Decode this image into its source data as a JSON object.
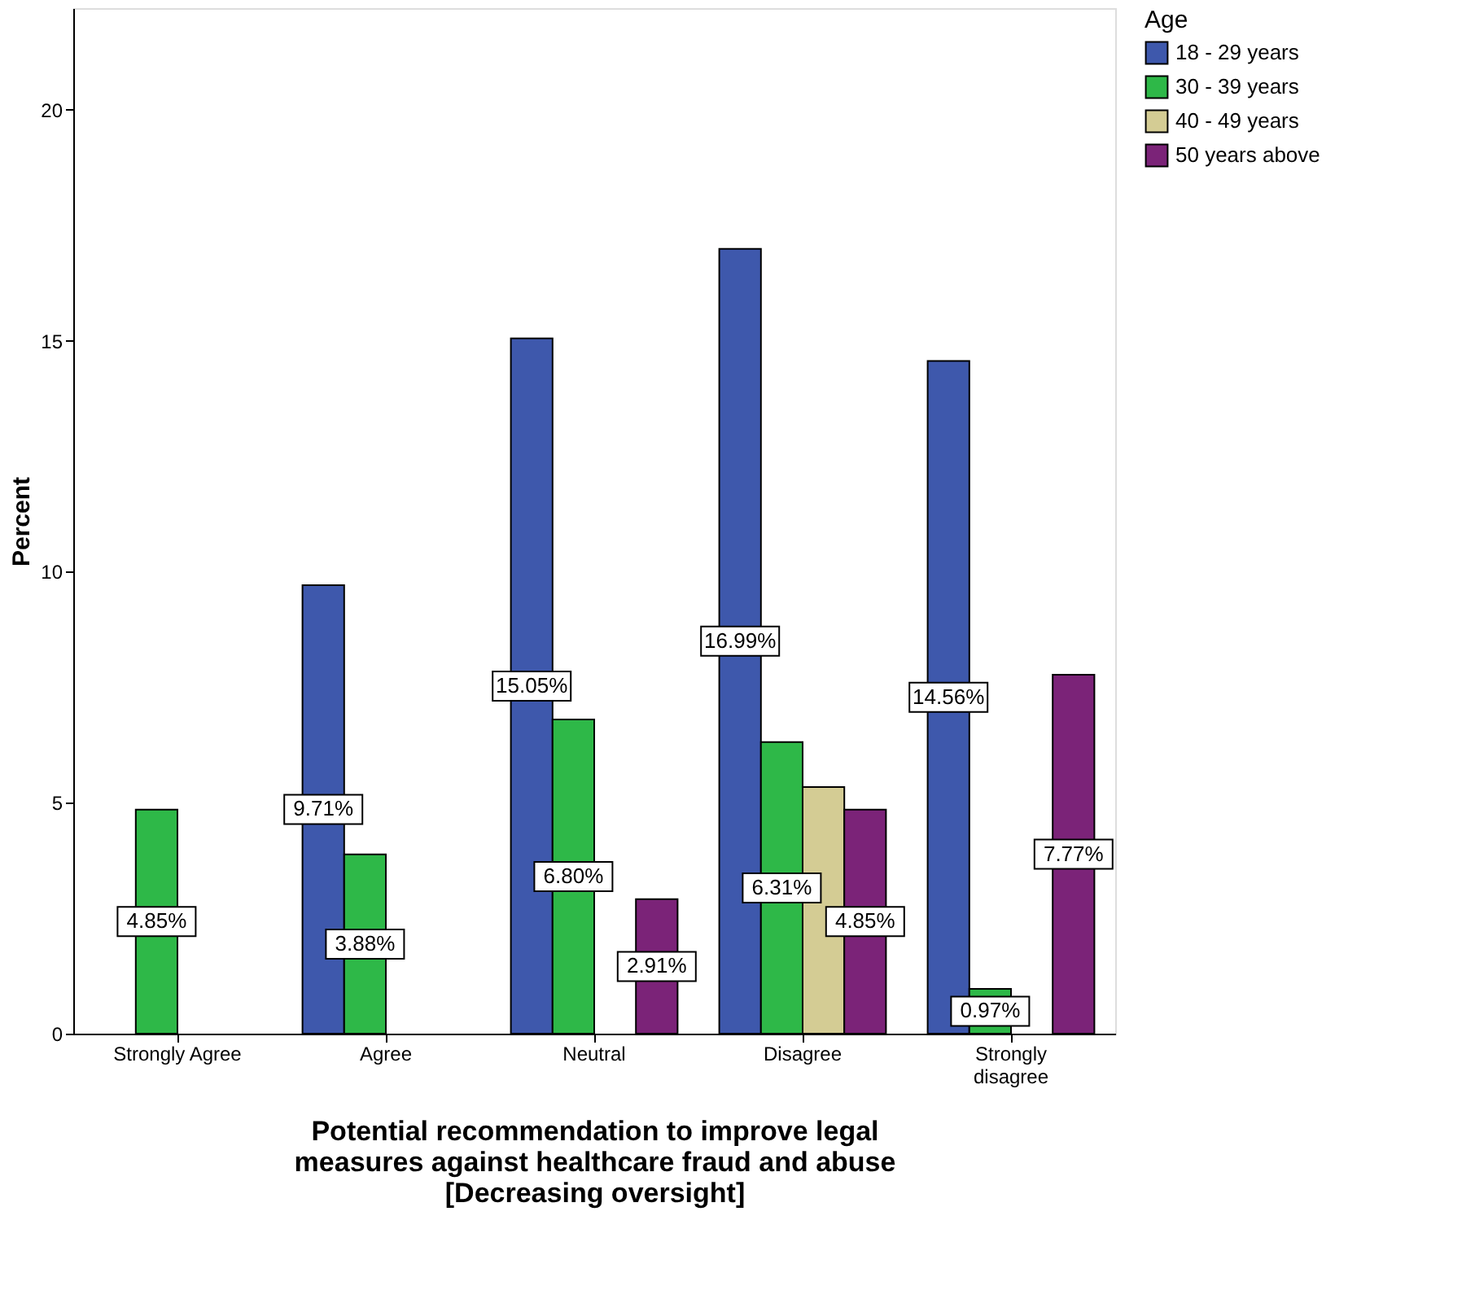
{
  "chart_data": {
    "type": "bar",
    "xlabel": "Potential recommendation to improve legal measures against healthcare fraud and abuse [Decreasing oversight]",
    "ylabel": "Percent",
    "legend_title": "Age",
    "categories": [
      "Strongly Agree",
      "Agree",
      "Neutral",
      "Disagree",
      "Strongly disagree"
    ],
    "series": [
      {
        "name": "18 - 29 years",
        "color": "#3e58ac",
        "values": [
          null,
          9.71,
          15.05,
          16.99,
          14.56
        ],
        "value_labels": [
          null,
          "9.71%",
          "15.05%",
          "16.99%",
          "14.56%"
        ]
      },
      {
        "name": "30 - 39 years",
        "color": "#2eb848",
        "values": [
          4.85,
          3.88,
          6.8,
          6.31,
          0.97
        ],
        "value_labels": [
          "4.85%",
          "3.88%",
          "6.80%",
          "6.31%",
          "0.97%"
        ]
      },
      {
        "name": "40 - 49 years",
        "color": "#d4cc94",
        "values": [
          null,
          null,
          null,
          5.34,
          null
        ],
        "value_labels": [
          null,
          null,
          null,
          null,
          null
        ]
      },
      {
        "name": "50 years above",
        "color": "#7b2378",
        "values": [
          null,
          null,
          2.91,
          4.85,
          7.77
        ],
        "value_labels": [
          null,
          null,
          "2.91%",
          "4.85%",
          "7.77%"
        ]
      }
    ],
    "ylim": [
      0,
      22.2
    ],
    "yticks": [
      0,
      5,
      10,
      15,
      20
    ],
    "grid": false,
    "legend": "top right"
  }
}
